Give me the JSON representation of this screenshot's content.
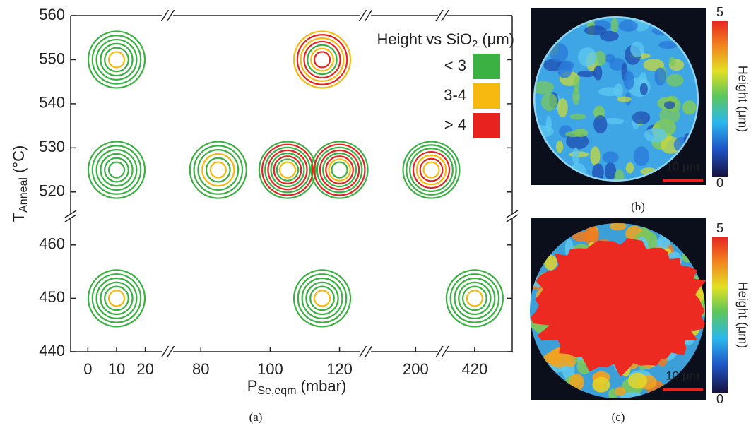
{
  "chart_data": {
    "type": "rings",
    "x_label": {
      "main": "P",
      "sub": "Se,eqm",
      "unit": "(mbar)"
    },
    "y_label": {
      "main": "T",
      "sub": "Anneal",
      "unit": "(°C)"
    },
    "x_segments": [
      {
        "xlim": [
          -6,
          26
        ],
        "xticks": [
          0,
          10,
          20
        ]
      },
      {
        "xlim": [
          72,
          126
        ],
        "xticks": [
          80,
          100,
          120
        ]
      },
      {
        "xlim": [
          180,
          210
        ],
        "xticks": [
          200
        ]
      },
      {
        "xlim": [
          405,
          440
        ],
        "xticks": [
          420
        ]
      }
    ],
    "y_segments": [
      {
        "ylim": [
          440,
          465
        ],
        "yticks": [
          440,
          450,
          460
        ]
      },
      {
        "ylim": [
          515,
          560
        ],
        "yticks": [
          520,
          530,
          540,
          550,
          560
        ]
      }
    ],
    "legend": {
      "title": {
        "main": "Height vs SiO",
        "sub": "2",
        "unit": "(μm)"
      },
      "corner": "top-right"
    },
    "classes": [
      {
        "name": "< 3",
        "color": "#3bb043"
      },
      {
        "name": "3-4",
        "color": "#f7b90f"
      },
      {
        "name": "> 4",
        "color": "#e8221e"
      }
    ],
    "points": [
      {
        "x": 10,
        "y": 550,
        "rings": [
          1,
          0,
          0,
          0,
          0,
          0
        ]
      },
      {
        "x": 115,
        "y": 550,
        "rings": [
          2,
          1,
          0,
          2,
          1,
          2,
          1
        ]
      },
      {
        "x": 10,
        "y": 525,
        "rings": [
          0,
          0,
          0,
          0,
          0,
          0
        ]
      },
      {
        "x": 85,
        "y": 525,
        "rings": [
          1,
          0,
          1,
          0,
          0,
          0
        ]
      },
      {
        "x": 105,
        "y": 525,
        "rings": [
          1,
          0,
          2,
          0,
          2,
          0,
          2,
          0
        ]
      },
      {
        "x": 120,
        "y": 525,
        "rings": [
          0,
          1,
          2,
          0,
          2,
          0,
          2,
          0
        ]
      },
      {
        "x": 207,
        "y": 525,
        "rings": [
          1,
          2,
          1,
          2,
          0,
          0,
          0
        ]
      },
      {
        "x": 10,
        "y": 450,
        "rings": [
          1,
          0,
          0,
          0,
          0,
          0
        ]
      },
      {
        "x": 115,
        "y": 450,
        "rings": [
          1,
          0,
          0,
          0,
          0,
          0
        ]
      },
      {
        "x": 420,
        "y": 450,
        "rings": [
          1,
          0,
          0,
          0,
          0,
          0
        ]
      }
    ]
  },
  "panels": {
    "a": {
      "caption": "(a)"
    },
    "b": {
      "caption": "(b)",
      "scale_bar": "10 μm",
      "colorbar": {
        "label": "Height (μm)",
        "clim": [
          0,
          5
        ],
        "ticks": [
          0,
          5
        ]
      }
    },
    "c": {
      "caption": "(c)",
      "scale_bar": "10 μm",
      "colorbar": {
        "label": "Height (μm)",
        "clim": [
          0,
          5
        ],
        "ticks": [
          0,
          5
        ]
      }
    }
  }
}
